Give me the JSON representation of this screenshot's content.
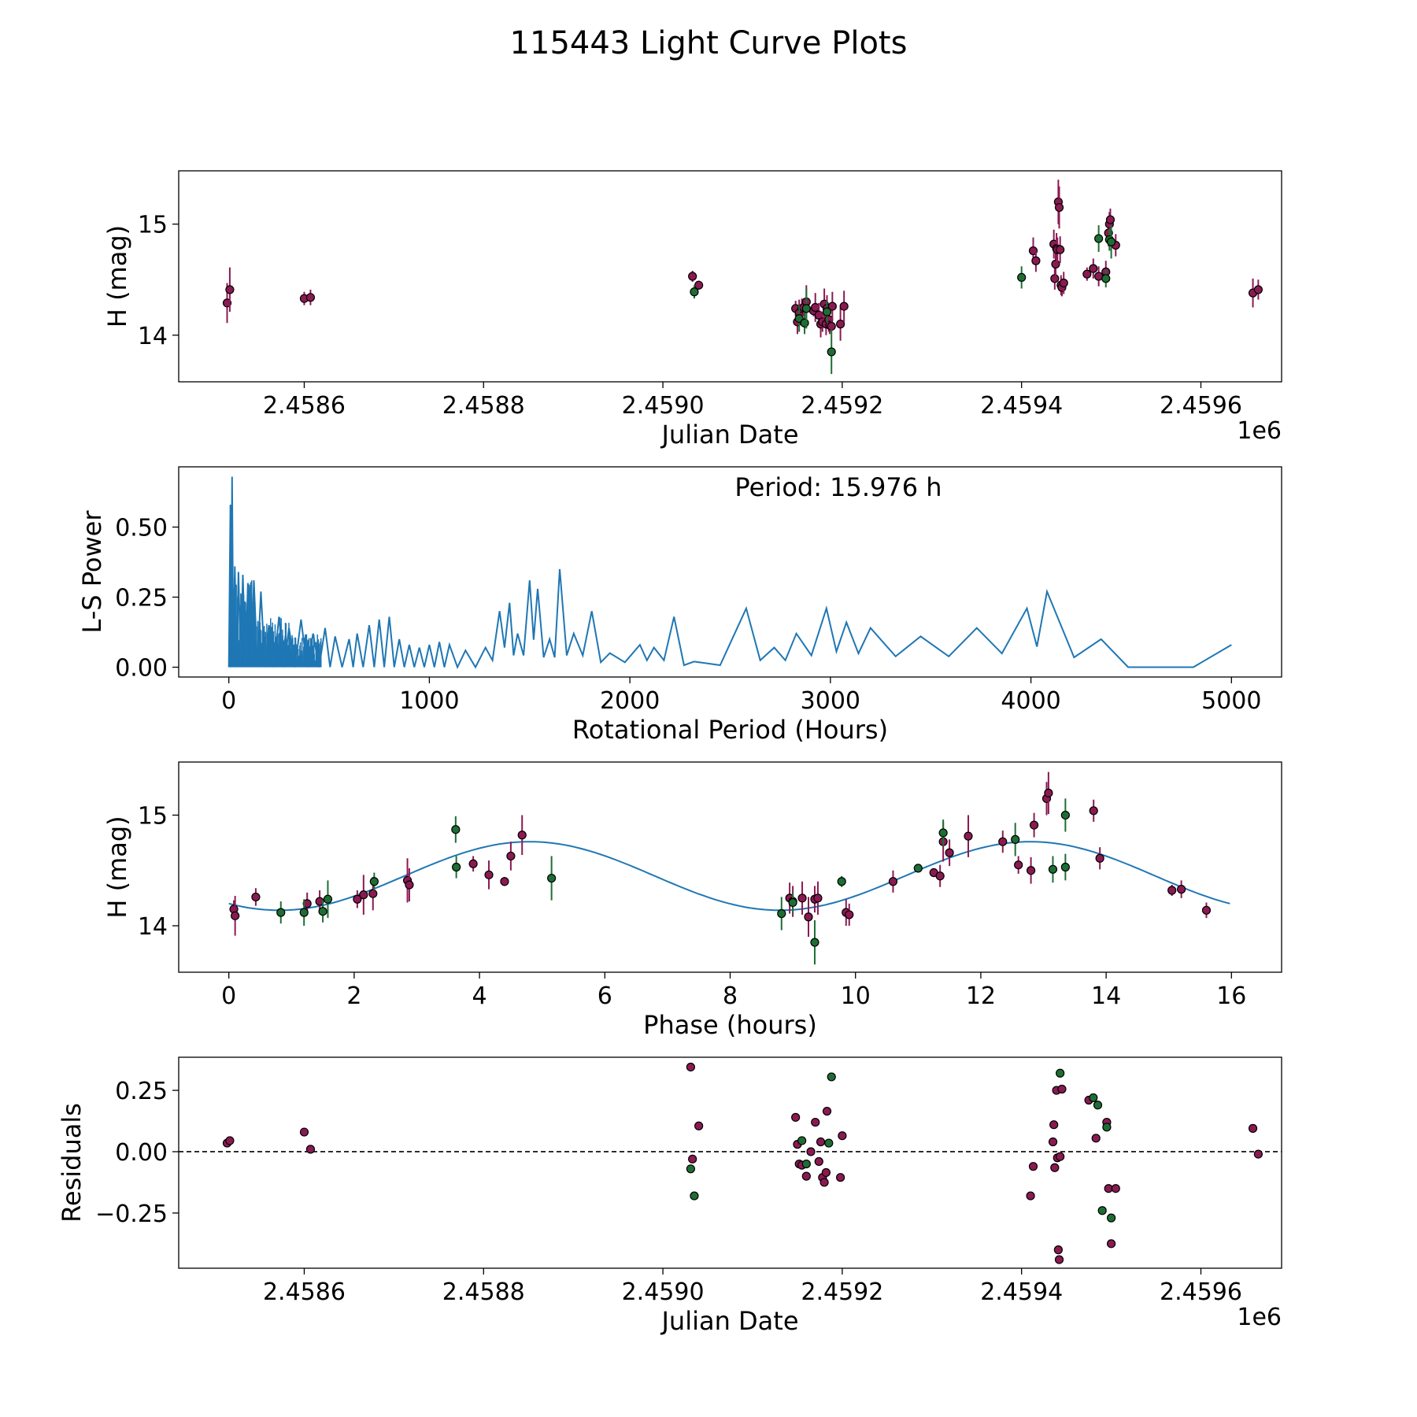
{
  "title": "115443 Light Curve Plots",
  "colors": {
    "magenta_points": "#8b1a52",
    "green_points": "#1e6e34",
    "curve": "#1f77b4",
    "marker_edge": "#000000"
  },
  "chart_data": [
    {
      "id": "raw",
      "type": "scatter",
      "xlabel": "Julian Date",
      "ylabel": "H (mag)",
      "xlim": [
        2458460,
        2459690
      ],
      "ylim": [
        13.58,
        15.48
      ],
      "xticks": [
        2458600,
        2458800,
        2459000,
        2459200,
        2459400,
        2459600
      ],
      "xtick_labels": [
        "2.4586",
        "2.4588",
        "2.4590",
        "2.4592",
        "2.4594",
        "2.4596"
      ],
      "yticks": [
        14,
        15
      ],
      "ytick_labels": [
        "14",
        "15"
      ],
      "offset_label": "1e6",
      "series": [
        {
          "name": "magenta",
          "color": "#8b1a52",
          "x": [
            2458514,
            2458517,
            2458600,
            2458607,
            2459033,
            2459040,
            2459148,
            2459150,
            2459152,
            2459155,
            2459157,
            2459160,
            2459168,
            2459170,
            2459174,
            2459176,
            2459178,
            2459180,
            2459182,
            2459183,
            2459185,
            2459186,
            2459188,
            2459189,
            2459198,
            2459202,
            2459413,
            2459416,
            2459436,
            2459437,
            2459438,
            2459439,
            2459440,
            2459441,
            2459442,
            2459443,
            2459444,
            2459445,
            2459447,
            2459473,
            2459480,
            2459486,
            2459494,
            2459497,
            2459498,
            2459499,
            2459505,
            2459658,
            2459664
          ],
          "y": [
            14.29,
            14.41,
            14.33,
            14.34,
            14.53,
            14.45,
            14.24,
            14.12,
            14.2,
            14.24,
            14.25,
            14.3,
            14.22,
            14.25,
            14.18,
            14.1,
            14.12,
            14.28,
            14.1,
            14.24,
            14.14,
            14.09,
            14.08,
            14.26,
            14.1,
            14.26,
            14.76,
            14.67,
            14.82,
            14.51,
            14.64,
            14.78,
            14.77,
            15.2,
            15.15,
            14.77,
            14.45,
            14.43,
            14.47,
            14.55,
            14.6,
            14.53,
            14.57,
            14.92,
            15.0,
            15.04,
            14.81,
            14.38,
            14.41
          ],
          "yerr": [
            0.18,
            0.2,
            0.06,
            0.07,
            0.05,
            0.04,
            0.07,
            0.11,
            0.12,
            0.09,
            0.08,
            0.15,
            0.05,
            0.13,
            0.11,
            0.12,
            0.09,
            0.14,
            0.1,
            0.12,
            0.11,
            0.08,
            0.05,
            0.13,
            0.15,
            0.14,
            0.12,
            0.1,
            0.13,
            0.1,
            0.15,
            0.14,
            0.11,
            0.2,
            0.19,
            0.12,
            0.09,
            0.08,
            0.1,
            0.06,
            0.09,
            0.09,
            0.1,
            0.12,
            0.11,
            0.1,
            0.1,
            0.13,
            0.09
          ]
        },
        {
          "name": "green",
          "color": "#1e6e34",
          "x": [
            2459035,
            2459152,
            2459158,
            2459160,
            2459183,
            2459188,
            2459400,
            2459486,
            2459494,
            2459498,
            2459500
          ],
          "y": [
            14.39,
            14.15,
            14.11,
            14.24,
            14.21,
            13.85,
            14.52,
            14.87,
            14.51,
            14.86,
            14.84
          ],
          "yerr": [
            0.06,
            0.12,
            0.1,
            0.18,
            0.1,
            0.2,
            0.1,
            0.12,
            0.08,
            0.1,
            0.15
          ]
        }
      ]
    },
    {
      "id": "periodogram",
      "type": "line",
      "xlabel": "Rotational Period (Hours)",
      "ylabel": "L-S Power",
      "xlim": [
        -250,
        5250
      ],
      "ylim": [
        -0.035,
        0.715
      ],
      "xticks": [
        0,
        1000,
        2000,
        3000,
        4000,
        5000
      ],
      "xtick_labels": [
        "0",
        "1000",
        "2000",
        "3000",
        "4000",
        "5000"
      ],
      "yticks": [
        0,
        0.25,
        0.5
      ],
      "ytick_labels": [
        "0.00",
        "0.25",
        "0.50"
      ],
      "annotation": "Period: 15.976 h",
      "line_color": "#1f77b4",
      "peaks_period": [
        8,
        16,
        30,
        48,
        70,
        95,
        125,
        160,
        200,
        250,
        300,
        360,
        420,
        480,
        530,
        600,
        640,
        700,
        750,
        800,
        850,
        900,
        950,
        1000,
        1050,
        1100,
        1180,
        1280,
        1350,
        1400,
        1440,
        1500,
        1540,
        1600,
        1650,
        1720,
        1810,
        1900,
        2050,
        2120,
        2220,
        2320,
        2580,
        2720,
        2830,
        2980,
        3080,
        3200,
        3450,
        3730,
        3980,
        4080,
        4350,
        4620,
        5000
      ],
      "peaks_power": [
        0.58,
        0.68,
        0.36,
        0.34,
        0.33,
        0.3,
        0.31,
        0.27,
        0.15,
        0.18,
        0.14,
        0.17,
        0.12,
        0.14,
        0.11,
        0.1,
        0.12,
        0.15,
        0.17,
        0.18,
        0.1,
        0.08,
        0.07,
        0.08,
        0.09,
        0.08,
        0.06,
        0.07,
        0.2,
        0.23,
        0.12,
        0.31,
        0.28,
        0.1,
        0.35,
        0.12,
        0.2,
        0.05,
        0.08,
        0.07,
        0.18,
        0.02,
        0.21,
        0.07,
        0.12,
        0.21,
        0.16,
        0.14,
        0.11,
        0.14,
        0.21,
        0.27,
        0.1,
        0.0,
        0.08
      ]
    },
    {
      "id": "phase",
      "type": "scatter",
      "xlabel": "Phase (hours)",
      "ylabel": "H (mag)",
      "xlim": [
        -0.8,
        16.8
      ],
      "ylim": [
        13.58,
        15.48
      ],
      "xticks": [
        0,
        2,
        4,
        6,
        8,
        10,
        12,
        14,
        16
      ],
      "xtick_labels": [
        "0",
        "2",
        "4",
        "6",
        "8",
        "10",
        "12",
        "14",
        "16"
      ],
      "yticks": [
        14,
        15
      ],
      "ytick_labels": [
        "14",
        "15"
      ],
      "model": {
        "mean": 14.45,
        "amplitude": 0.31,
        "period": 7.988,
        "peak_phase": 4.8,
        "x_max": 15.976,
        "color": "#1f77b4"
      },
      "series": [
        {
          "name": "magenta",
          "color": "#8b1a52",
          "x": [
            0.08,
            0.1,
            0.43,
            1.25,
            1.45,
            2.05,
            2.15,
            2.3,
            2.85,
            2.88,
            3.9,
            4.15,
            4.4,
            4.5,
            4.68,
            8.95,
            9.0,
            9.15,
            9.25,
            9.35,
            9.4,
            9.85,
            9.9,
            10.6,
            11.25,
            11.35,
            11.4,
            11.5,
            11.8,
            12.35,
            12.6,
            12.8,
            12.85,
            13.05,
            13.08,
            13.8,
            13.9,
            15.05,
            15.2,
            15.6
          ],
          "y": [
            14.15,
            14.09,
            14.26,
            14.2,
            14.22,
            14.24,
            14.28,
            14.29,
            14.41,
            14.37,
            14.56,
            14.46,
            14.4,
            14.63,
            14.82,
            14.25,
            14.22,
            14.25,
            14.08,
            14.24,
            14.25,
            14.12,
            14.1,
            14.4,
            14.48,
            14.45,
            14.76,
            14.66,
            14.81,
            14.76,
            14.55,
            14.5,
            14.91,
            15.15,
            15.2,
            15.04,
            14.61,
            14.32,
            14.33,
            14.14
          ],
          "yerr": [
            0.08,
            0.18,
            0.08,
            0.1,
            0.1,
            0.08,
            0.18,
            0.15,
            0.2,
            0.15,
            0.07,
            0.13,
            0.04,
            0.13,
            0.18,
            0.14,
            0.14,
            0.15,
            0.18,
            0.12,
            0.15,
            0.12,
            0.1,
            0.1,
            0.04,
            0.1,
            0.18,
            0.12,
            0.19,
            0.1,
            0.08,
            0.12,
            0.11,
            0.15,
            0.19,
            0.1,
            0.1,
            0.05,
            0.08,
            0.07
          ]
        },
        {
          "name": "green",
          "color": "#1e6e34",
          "x": [
            0.83,
            1.2,
            1.5,
            1.58,
            2.32,
            3.62,
            3.63,
            5.15,
            8.82,
            9.0,
            9.35,
            9.78,
            11.0,
            11.4,
            12.55,
            13.15,
            13.35,
            13.35
          ],
          "y": [
            14.12,
            14.12,
            14.13,
            14.24,
            14.4,
            14.87,
            14.53,
            14.43,
            14.11,
            14.21,
            13.85,
            14.4,
            14.52,
            14.84,
            14.78,
            14.51,
            15.0,
            14.53
          ],
          "yerr": [
            0.1,
            0.12,
            0.1,
            0.17,
            0.08,
            0.12,
            0.1,
            0.2,
            0.15,
            0.1,
            0.2,
            0.05,
            0.03,
            0.12,
            0.15,
            0.12,
            0.15,
            0.12
          ]
        }
      ]
    },
    {
      "id": "residuals",
      "type": "scatter",
      "xlabel": "Julian Date",
      "ylabel": "Residuals",
      "xlim": [
        2458460,
        2459690
      ],
      "ylim": [
        -0.475,
        0.385
      ],
      "xticks": [
        2458600,
        2458800,
        2459000,
        2459200,
        2459400,
        2459600
      ],
      "xtick_labels": [
        "2.4586",
        "2.4588",
        "2.4590",
        "2.4592",
        "2.4594",
        "2.4596"
      ],
      "yticks": [
        -0.25,
        0,
        0.25
      ],
      "ytick_labels": [
        "−0.25",
        "0.00",
        "0.25"
      ],
      "offset_label": "1e6",
      "zero_line": 0,
      "series": [
        {
          "name": "magenta",
          "color": "#8b1a52",
          "x": [
            2458514,
            2458517,
            2458600,
            2458607,
            2459031,
            2459033,
            2459040,
            2459148,
            2459150,
            2459152,
            2459155,
            2459160,
            2459165,
            2459170,
            2459174,
            2459176,
            2459178,
            2459180,
            2459182,
            2459183,
            2459198,
            2459200,
            2459410,
            2459413,
            2459435,
            2459436,
            2459437,
            2459439,
            2459440,
            2459441,
            2459442,
            2459443,
            2459445,
            2459475,
            2459483,
            2459495,
            2459497,
            2459500,
            2459505,
            2459658,
            2459664
          ],
          "y": [
            0.035,
            0.045,
            0.08,
            0.01,
            0.345,
            -0.03,
            0.105,
            0.14,
            0.03,
            -0.05,
            -0.055,
            -0.1,
            0.0,
            0.12,
            -0.04,
            0.04,
            -0.105,
            -0.125,
            -0.085,
            0.165,
            -0.105,
            0.065,
            -0.18,
            -0.06,
            0.04,
            0.11,
            -0.065,
            0.25,
            -0.025,
            -0.4,
            -0.44,
            -0.02,
            0.255,
            0.21,
            0.055,
            0.12,
            -0.15,
            -0.375,
            -0.15,
            0.095,
            -0.01
          ],
          "yerr": []
        },
        {
          "name": "green",
          "color": "#1e6e34",
          "x": [
            2459031,
            2459035,
            2459155,
            2459160,
            2459185,
            2459188,
            2459443,
            2459480,
            2459485,
            2459490,
            2459495,
            2459500
          ],
          "y": [
            -0.07,
            -0.18,
            0.045,
            -0.05,
            0.035,
            0.305,
            0.32,
            0.22,
            0.19,
            -0.24,
            0.1,
            -0.27
          ],
          "yerr": []
        }
      ]
    }
  ]
}
